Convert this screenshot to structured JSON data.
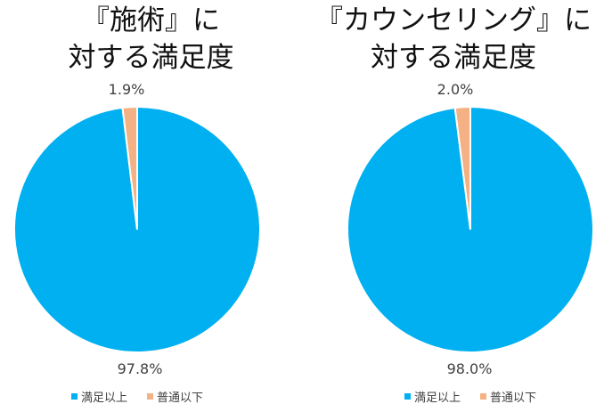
{
  "colors": {
    "satisfied": "#00b0f0",
    "neutral": "#f4b183"
  },
  "chart_data": [
    {
      "type": "pie",
      "title_line1": "『施術』に",
      "title_line2": "対する満足度",
      "categories": [
        "満足以上",
        "普通以下"
      ],
      "values": [
        97.8,
        1.9
      ],
      "labels": [
        "97.8%",
        "1.9%"
      ],
      "legend": [
        "満足以上",
        "普通以下"
      ],
      "legend_position": "bottom"
    },
    {
      "type": "pie",
      "title_line1": "『カウンセリング』に",
      "title_line2": "対する満足度",
      "categories": [
        "満足以上",
        "普通以下"
      ],
      "values": [
        98.0,
        2.0
      ],
      "labels": [
        "98.0%",
        "2.0%"
      ],
      "legend": [
        "満足以上",
        "普通以下"
      ],
      "legend_position": "bottom"
    }
  ]
}
